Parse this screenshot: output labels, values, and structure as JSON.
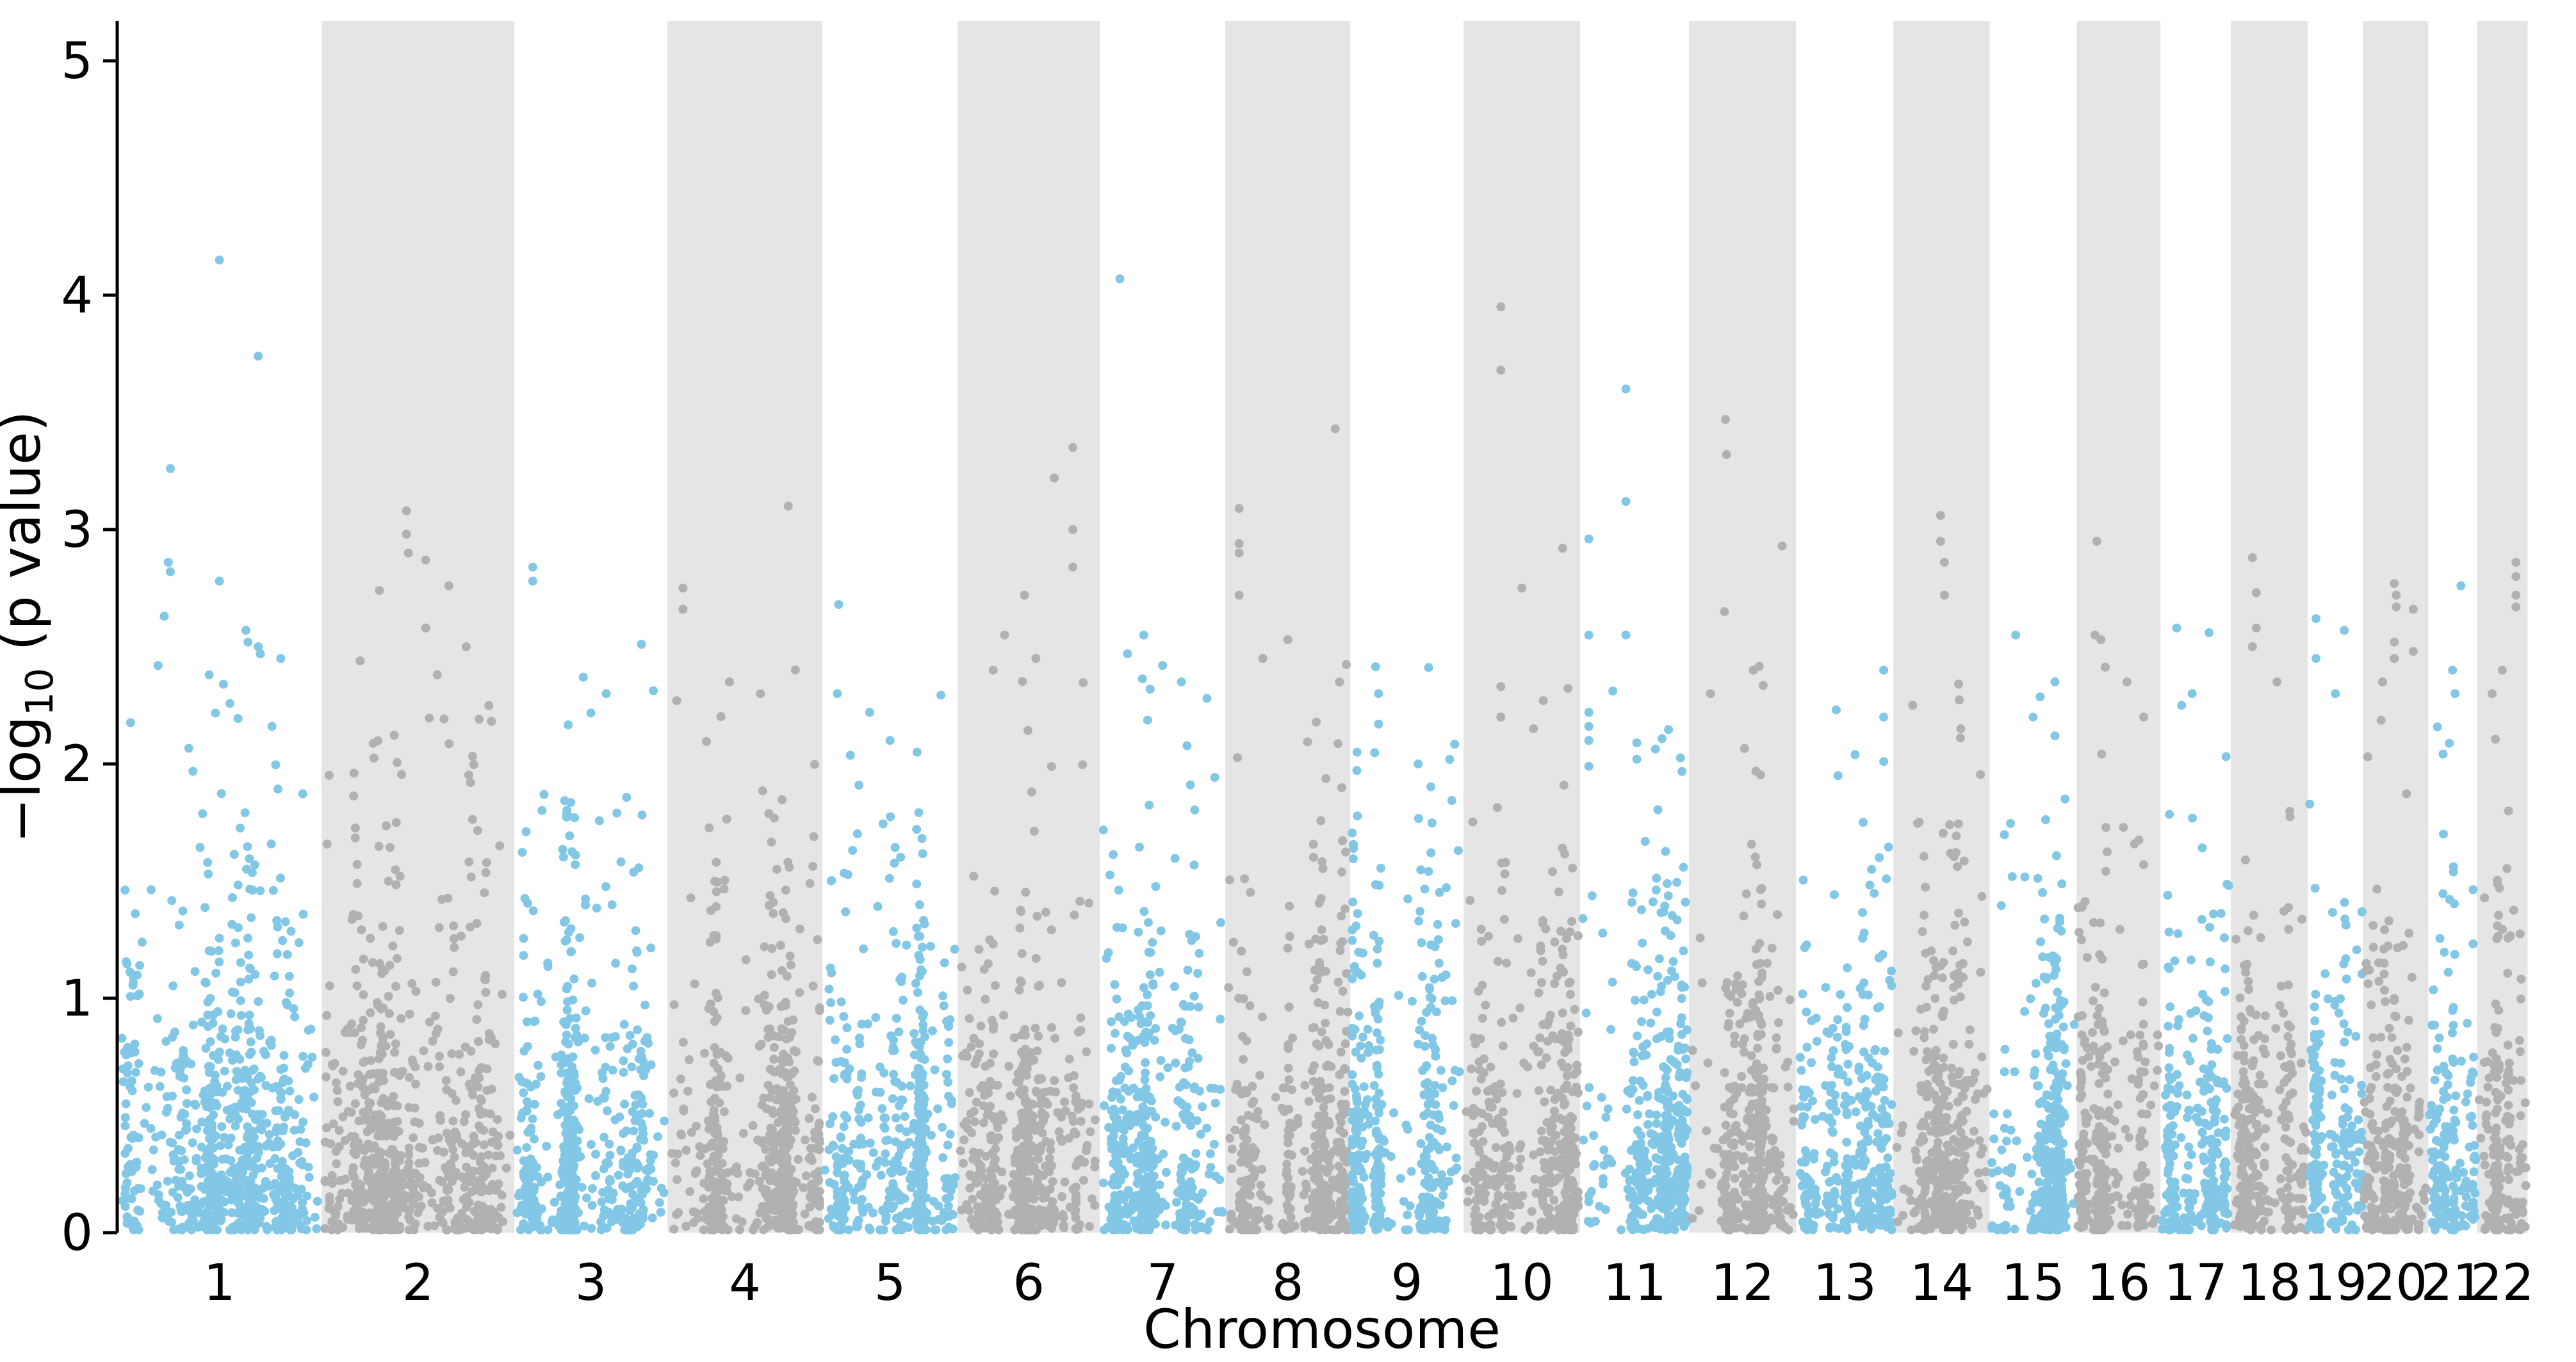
{
  "chart_data": {
    "type": "scatter",
    "variant": "manhattan-plot",
    "title": "",
    "xlabel": "Chromosome",
    "ylabel": {
      "pre": "−log",
      "sub": "10",
      "post": " (p value)"
    },
    "ylim": [
      0,
      5.17
    ],
    "yticks": [
      0,
      1,
      2,
      3,
      4,
      5
    ],
    "grid": false,
    "legend": "none",
    "colors": {
      "odd_chrom_points": "#82C8E6",
      "even_chrom_points": "#B1B1B1",
      "even_chrom_band": "#E5E5E5",
      "axis": "#000000",
      "background": "#FFFFFF"
    },
    "point_radius_px": 7,
    "generation": {
      "seed": 42,
      "background_model": "uniform p-values, v = -log10(u)",
      "background_max_value": 2.45,
      "uniform_mix": 0.22
    },
    "chromosomes": [
      {
        "label": "1",
        "width_frac": 0.0848,
        "n_points": 780,
        "color": "odd",
        "notable_points": [
          [
            0.5,
            4.15
          ],
          [
            0.69,
            3.74
          ],
          [
            0.26,
            3.26
          ],
          [
            0.25,
            2.86
          ],
          [
            0.26,
            2.82
          ],
          [
            0.5,
            2.78
          ],
          [
            0.23,
            2.63
          ],
          [
            0.63,
            2.57
          ],
          [
            0.64,
            2.52
          ],
          [
            0.69,
            2.5
          ],
          [
            0.7,
            2.47
          ],
          [
            0.8,
            2.45
          ],
          [
            0.2,
            2.42
          ],
          [
            0.45,
            2.38
          ],
          [
            0.52,
            2.34
          ]
        ]
      },
      {
        "label": "2",
        "width_frac": 0.08,
        "n_points": 700,
        "color": "even",
        "notable_points": [
          [
            0.44,
            3.08
          ],
          [
            0.44,
            2.98
          ],
          [
            0.45,
            2.9
          ],
          [
            0.54,
            2.87
          ],
          [
            0.66,
            2.76
          ],
          [
            0.3,
            2.74
          ],
          [
            0.54,
            2.58
          ],
          [
            0.75,
            2.5
          ],
          [
            0.2,
            2.44
          ],
          [
            0.6,
            2.38
          ]
        ]
      },
      {
        "label": "3",
        "width_frac": 0.0635,
        "n_points": 560,
        "color": "odd",
        "notable_points": [
          [
            0.12,
            2.84
          ],
          [
            0.12,
            2.78
          ],
          [
            0.83,
            2.51
          ],
          [
            0.45,
            2.37
          ],
          [
            0.6,
            2.3
          ]
        ]
      },
      {
        "label": "4",
        "width_frac": 0.0643,
        "n_points": 560,
        "color": "even",
        "notable_points": [
          [
            0.78,
            3.1
          ],
          [
            0.1,
            2.75
          ],
          [
            0.1,
            2.66
          ],
          [
            0.4,
            2.35
          ],
          [
            0.06,
            2.27
          ],
          [
            0.6,
            2.3
          ]
        ]
      },
      {
        "label": "5",
        "width_frac": 0.0561,
        "n_points": 500,
        "color": "odd",
        "notable_points": [
          [
            0.12,
            2.68
          ],
          [
            0.11,
            2.3
          ],
          [
            0.35,
            2.22
          ],
          [
            0.5,
            2.1
          ],
          [
            0.7,
            2.05
          ]
        ]
      },
      {
        "label": "6",
        "width_frac": 0.059,
        "n_points": 520,
        "color": "even",
        "notable_points": [
          [
            0.81,
            3.35
          ],
          [
            0.68,
            3.22
          ],
          [
            0.81,
            3.0
          ],
          [
            0.81,
            2.84
          ],
          [
            0.47,
            2.72
          ],
          [
            0.33,
            2.55
          ],
          [
            0.55,
            2.45
          ],
          [
            0.25,
            2.4
          ]
        ]
      },
      {
        "label": "7",
        "width_frac": 0.0521,
        "n_points": 470,
        "color": "odd",
        "notable_points": [
          [
            0.16,
            4.07
          ],
          [
            0.35,
            2.55
          ],
          [
            0.22,
            2.47
          ],
          [
            0.5,
            2.42
          ],
          [
            0.65,
            2.35
          ]
        ]
      },
      {
        "label": "8",
        "width_frac": 0.0518,
        "n_points": 460,
        "color": "even",
        "notable_points": [
          [
            0.88,
            3.43
          ],
          [
            0.11,
            3.09
          ],
          [
            0.11,
            2.94
          ],
          [
            0.11,
            2.9
          ],
          [
            0.11,
            2.72
          ],
          [
            0.5,
            2.53
          ],
          [
            0.3,
            2.45
          ]
        ]
      },
      {
        "label": "9",
        "width_frac": 0.047,
        "n_points": 420,
        "color": "odd",
        "notable_points": [
          [
            0.25,
            2.3
          ],
          [
            0.25,
            2.17
          ],
          [
            0.06,
            2.05
          ],
          [
            0.6,
            2.0
          ]
        ]
      },
      {
        "label": "10",
        "width_frac": 0.0484,
        "n_points": 430,
        "color": "even",
        "notable_points": [
          [
            0.32,
            3.95
          ],
          [
            0.32,
            3.68
          ],
          [
            0.85,
            2.92
          ],
          [
            0.5,
            2.75
          ],
          [
            0.32,
            2.33
          ],
          [
            0.32,
            2.2
          ],
          [
            0.6,
            2.15
          ]
        ]
      },
      {
        "label": "11",
        "width_frac": 0.0452,
        "n_points": 410,
        "color": "odd",
        "notable_points": [
          [
            0.42,
            3.6
          ],
          [
            0.42,
            3.12
          ],
          [
            0.08,
            2.96
          ],
          [
            0.08,
            2.55
          ],
          [
            0.42,
            2.55
          ],
          [
            0.08,
            2.22
          ],
          [
            0.08,
            2.16
          ],
          [
            0.08,
            2.1
          ],
          [
            0.52,
            2.09
          ],
          [
            0.52,
            2.02
          ],
          [
            0.08,
            1.99
          ]
        ]
      },
      {
        "label": "12",
        "width_frac": 0.0444,
        "n_points": 400,
        "color": "even",
        "notable_points": [
          [
            0.34,
            3.47
          ],
          [
            0.35,
            3.32
          ],
          [
            0.87,
            2.93
          ],
          [
            0.33,
            2.65
          ],
          [
            0.6,
            2.4
          ],
          [
            0.2,
            2.3
          ]
        ]
      },
      {
        "label": "13",
        "width_frac": 0.0404,
        "n_points": 360,
        "color": "odd",
        "notable_points": [
          [
            0.9,
            2.4
          ],
          [
            0.9,
            2.2
          ],
          [
            0.9,
            2.01
          ],
          [
            0.43,
            1.95
          ]
        ]
      },
      {
        "label": "14",
        "width_frac": 0.0399,
        "n_points": 355,
        "color": "even",
        "notable_points": [
          [
            0.49,
            3.06
          ],
          [
            0.49,
            2.95
          ],
          [
            0.53,
            2.86
          ],
          [
            0.53,
            2.72
          ],
          [
            0.2,
            2.25
          ],
          [
            0.7,
            2.15
          ]
        ]
      },
      {
        "label": "15",
        "width_frac": 0.0361,
        "n_points": 330,
        "color": "odd",
        "notable_points": [
          [
            0.3,
            2.55
          ],
          [
            0.75,
            2.35
          ],
          [
            0.5,
            2.2
          ],
          [
            0.75,
            2.12
          ]
        ]
      },
      {
        "label": "16",
        "width_frac": 0.0348,
        "n_points": 315,
        "color": "even",
        "notable_points": [
          [
            0.24,
            2.95
          ],
          [
            0.22,
            2.55
          ],
          [
            0.29,
            2.53
          ],
          [
            0.6,
            2.35
          ],
          [
            0.8,
            2.2
          ]
        ]
      },
      {
        "label": "17",
        "width_frac": 0.0292,
        "n_points": 270,
        "color": "odd",
        "notable_points": [
          [
            0.23,
            2.58
          ],
          [
            0.69,
            2.56
          ],
          [
            0.45,
            2.3
          ],
          [
            0.3,
            2.25
          ]
        ]
      },
      {
        "label": "18",
        "width_frac": 0.0319,
        "n_points": 290,
        "color": "even",
        "notable_points": [
          [
            0.28,
            2.88
          ],
          [
            0.33,
            2.73
          ],
          [
            0.33,
            2.58
          ],
          [
            0.28,
            2.5
          ],
          [
            0.6,
            2.35
          ]
        ]
      },
      {
        "label": "19",
        "width_frac": 0.0229,
        "n_points": 215,
        "color": "odd",
        "notable_points": [
          [
            0.15,
            2.62
          ],
          [
            0.66,
            2.57
          ],
          [
            0.15,
            2.45
          ],
          [
            0.5,
            2.3
          ]
        ]
      },
      {
        "label": "20",
        "width_frac": 0.0271,
        "n_points": 245,
        "color": "even",
        "notable_points": [
          [
            0.48,
            2.77
          ],
          [
            0.51,
            2.72
          ],
          [
            0.51,
            2.67
          ],
          [
            0.77,
            2.66
          ],
          [
            0.48,
            2.52
          ],
          [
            0.77,
            2.48
          ],
          [
            0.48,
            2.45
          ],
          [
            0.3,
            2.35
          ]
        ]
      },
      {
        "label": "21",
        "width_frac": 0.0202,
        "n_points": 185,
        "color": "odd",
        "notable_points": [
          [
            0.67,
            2.76
          ],
          [
            0.5,
            2.4
          ],
          [
            0.55,
            2.3
          ]
        ]
      },
      {
        "label": "22",
        "width_frac": 0.021,
        "n_points": 190,
        "color": "even",
        "notable_points": [
          [
            0.77,
            2.86
          ],
          [
            0.77,
            2.8
          ],
          [
            0.77,
            2.72
          ],
          [
            0.77,
            2.67
          ],
          [
            0.5,
            2.4
          ],
          [
            0.3,
            2.3
          ]
        ]
      }
    ]
  }
}
